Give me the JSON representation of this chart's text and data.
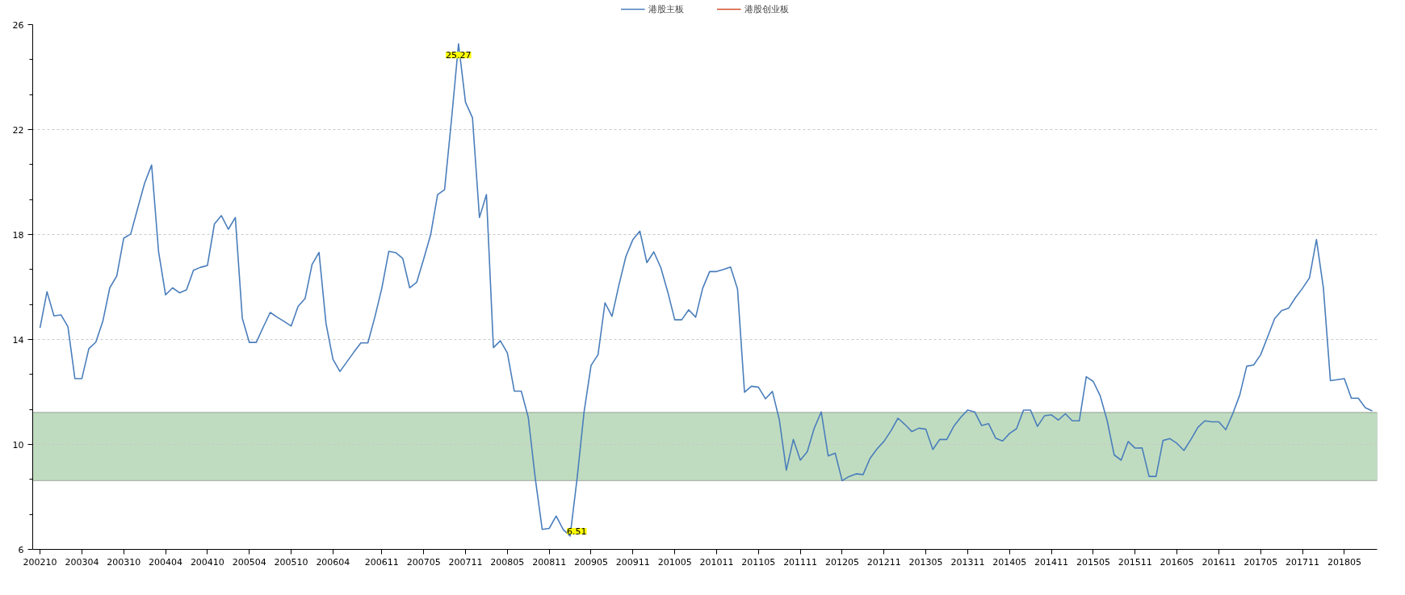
{
  "chart_data": {
    "type": "line",
    "categories": [
      "200210",
      null,
      null,
      null,
      null,
      null,
      "200304",
      null,
      null,
      null,
      null,
      null,
      "200310",
      null,
      null,
      null,
      null,
      null,
      "200404",
      null,
      null,
      null,
      null,
      null,
      "200410",
      null,
      null,
      null,
      null,
      null,
      "200504",
      null,
      null,
      null,
      null,
      null,
      "200510",
      null,
      null,
      null,
      null,
      null,
      "200604",
      null,
      null,
      null,
      null,
      null,
      null,
      "200611",
      null,
      null,
      null,
      null,
      null,
      "200705",
      null,
      null,
      null,
      null,
      null,
      "200711",
      null,
      null,
      null,
      null,
      null,
      "200805",
      null,
      null,
      null,
      null,
      null,
      "200811",
      null,
      null,
      null,
      null,
      null,
      "200905",
      null,
      null,
      null,
      null,
      null,
      "200911",
      null,
      null,
      null,
      null,
      null,
      "201005",
      null,
      null,
      null,
      null,
      null,
      "201011",
      null,
      null,
      null,
      null,
      null,
      "201105",
      null,
      null,
      null,
      null,
      null,
      "201111",
      null,
      null,
      null,
      null,
      null,
      "201205",
      null,
      null,
      null,
      null,
      null,
      "201211",
      null,
      null,
      null,
      null,
      null,
      "201305",
      null,
      null,
      null,
      null,
      null,
      "201311",
      null,
      null,
      null,
      null,
      null,
      "201405",
      null,
      null,
      null,
      null,
      null,
      "201411",
      null,
      null,
      null,
      null,
      null,
      "201505",
      null,
      null,
      null,
      null,
      null,
      "201511",
      null,
      null,
      null,
      null,
      null,
      "201605",
      null,
      null,
      null,
      null,
      null,
      "201611",
      null,
      null,
      null,
      null,
      null,
      "201705",
      null,
      null,
      null,
      null,
      null,
      "201711",
      null,
      null,
      null,
      null,
      null,
      "201805",
      null,
      null,
      null,
      null
    ],
    "series": [
      {
        "name": "港股主板",
        "color": "#4a7ebb",
        "values": [
          14.44,
          15.82,
          14.9,
          14.94,
          14.49,
          12.51,
          12.51,
          13.65,
          13.9,
          14.69,
          15.97,
          16.42,
          17.86,
          18.02,
          19.0,
          19.96,
          20.65,
          17.34,
          15.7,
          15.97,
          15.78,
          15.89,
          16.64,
          16.75,
          16.82,
          18.4,
          18.72,
          18.2,
          18.65,
          14.81,
          13.89,
          13.89,
          14.47,
          15.03,
          14.85,
          14.69,
          14.51,
          15.26,
          15.56,
          16.86,
          17.32,
          14.61,
          13.24,
          12.78,
          13.15,
          13.52,
          13.87,
          13.87,
          14.85,
          15.95,
          17.36,
          17.31,
          17.09,
          15.97,
          16.18,
          17.06,
          17.99,
          19.52,
          19.71,
          22.4,
          25.27,
          23.04,
          22.45,
          18.65,
          19.52,
          13.69,
          13.95,
          13.49,
          12.03,
          12.03,
          11.03,
          8.71,
          6.76,
          6.8,
          7.27,
          6.76,
          6.51,
          8.71,
          11.24,
          13.01,
          13.42,
          15.4,
          14.88,
          16.08,
          17.17,
          17.81,
          18.13,
          16.93,
          17.34,
          16.74,
          15.81,
          14.75,
          14.75,
          15.13,
          14.85,
          15.95,
          16.59,
          16.59,
          16.67,
          16.76,
          15.92,
          11.99,
          12.22,
          12.18,
          11.74,
          12.02,
          10.93,
          9.02,
          10.19,
          9.4,
          9.72,
          10.62,
          11.24,
          9.56,
          9.67,
          8.62,
          8.78,
          8.88,
          8.85,
          9.47,
          9.83,
          10.12,
          10.52,
          11.0,
          10.76,
          10.49,
          10.62,
          10.58,
          9.81,
          10.19,
          10.19,
          10.69,
          11.03,
          11.31,
          11.24,
          10.72,
          10.79,
          10.24,
          10.13,
          10.42,
          10.6,
          11.31,
          11.31,
          10.69,
          11.09,
          11.13,
          10.93,
          11.17,
          10.9,
          10.9,
          12.58,
          12.4,
          11.85,
          10.9,
          9.6,
          9.4,
          10.11,
          9.86,
          9.87,
          8.78,
          8.78,
          10.15,
          10.22,
          10.04,
          9.77,
          10.19,
          10.65,
          10.9,
          10.86,
          10.86,
          10.56,
          11.17,
          11.88,
          12.98,
          13.03,
          13.42,
          14.1,
          14.79,
          15.1,
          15.19,
          15.6,
          15.95,
          16.35,
          17.81,
          15.95,
          12.43,
          12.47,
          12.51,
          11.76,
          11.76,
          11.4,
          11.28
        ]
      },
      {
        "name": "港股创业板",
        "color": "#d0502a",
        "values": [
          null,
          null,
          null,
          null,
          null,
          null,
          null,
          null,
          null,
          null,
          null,
          null,
          null,
          null,
          null,
          null,
          null,
          null,
          null,
          null,
          null,
          null,
          null,
          null,
          null,
          null,
          null,
          null,
          null,
          null,
          null,
          null,
          null,
          null,
          null,
          null,
          null,
          null,
          null,
          null,
          null,
          null,
          null,
          null,
          null,
          null,
          null,
          null,
          null,
          null,
          null,
          null,
          null,
          null,
          null,
          null,
          null,
          null,
          null,
          null,
          null,
          null,
          null,
          null,
          null,
          null,
          null,
          null,
          null,
          null,
          null,
          null,
          null,
          null,
          null,
          null,
          null,
          null,
          null,
          null,
          null,
          null,
          null,
          null,
          null,
          null,
          null,
          null,
          null,
          null,
          null,
          null,
          null,
          null,
          null,
          null,
          null,
          null,
          null,
          null,
          null,
          null,
          null,
          null,
          null,
          null,
          null,
          null,
          null,
          null,
          null,
          null,
          null,
          null,
          null,
          null,
          null,
          null,
          null,
          null,
          null,
          null,
          null,
          null,
          null,
          null,
          null,
          null,
          null,
          null,
          null,
          null,
          null,
          null,
          null,
          null,
          null,
          null,
          null,
          null,
          null,
          null,
          null,
          null,
          null,
          null,
          null,
          null,
          null,
          null,
          null,
          null,
          null,
          null,
          null,
          null,
          null,
          null,
          null,
          null,
          null,
          null,
          null,
          null,
          null,
          null,
          null,
          null,
          null,
          null,
          null,
          null,
          null,
          null,
          null,
          null,
          null,
          null,
          null,
          null,
          null,
          null,
          null,
          null,
          null,
          null,
          null,
          null,
          null,
          null,
          null,
          null
        ]
      }
    ],
    "value_labels": [
      null,
      null,
      null,
      null,
      null,
      null,
      null,
      null,
      null,
      null,
      null,
      null,
      null,
      null,
      null,
      null,
      null,
      null,
      null,
      null,
      null,
      null,
      null,
      null,
      null,
      null,
      null,
      null,
      null,
      null,
      null,
      null,
      null,
      null,
      null,
      null,
      null,
      null,
      null,
      null,
      null,
      null,
      null,
      null,
      null,
      null,
      null,
      null,
      null,
      null,
      null,
      null,
      null,
      null,
      null,
      null,
      null,
      null,
      null,
      null,
      "25.27",
      null,
      null,
      null,
      null,
      null,
      null,
      null,
      null,
      null,
      null,
      null,
      null,
      null,
      null,
      null,
      "6.51",
      null,
      null,
      null,
      null,
      null,
      null,
      null,
      null,
      null,
      null,
      null,
      null,
      null,
      null,
      null,
      null,
      null,
      null,
      null,
      null,
      null,
      null,
      null,
      null,
      null,
      null,
      null,
      null,
      null,
      null,
      null,
      null,
      null,
      null,
      null,
      null,
      null,
      null,
      null,
      null,
      null,
      null,
      null,
      null,
      null,
      null,
      null,
      null,
      null,
      null,
      null,
      null,
      null,
      null,
      null,
      null,
      null,
      null,
      null,
      null,
      null,
      null,
      null,
      null,
      null,
      null,
      null,
      null,
      null,
      null,
      null,
      null,
      null,
      null,
      null,
      null,
      null,
      null,
      null,
      null,
      null,
      null,
      null,
      null,
      null,
      null,
      null,
      null,
      null,
      null,
      null,
      null,
      null,
      null,
      null,
      null,
      null,
      null,
      null,
      null,
      null,
      null,
      null,
      null,
      null,
      null,
      null,
      null,
      null,
      null,
      null,
      null,
      null,
      null,
      null
    ],
    "bands": [
      {
        "axis": "y",
        "from": 8.62,
        "to": 11.22,
        "color": "#c0dcc0"
      }
    ],
    "ylim": [
      6,
      26
    ],
    "yticks": [
      6,
      10,
      14,
      18,
      22,
      26
    ],
    "grid": "y",
    "legend": "top",
    "line_style": "solid",
    "marker": "none"
  }
}
